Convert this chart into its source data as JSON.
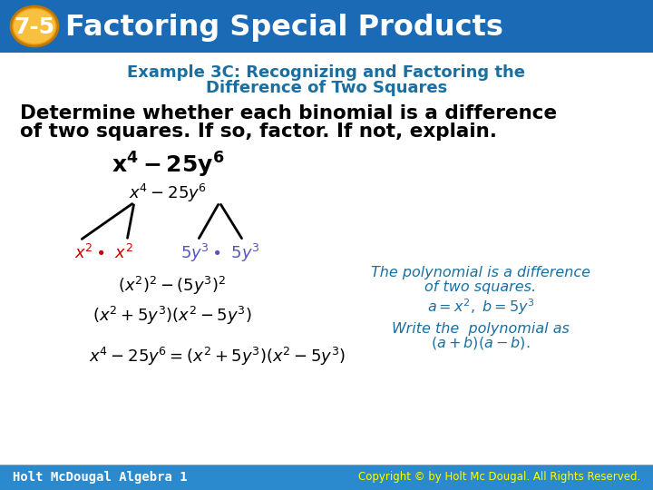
{
  "title_badge": "7-5",
  "title_text": "Factoring Special Products",
  "header_bg": "#1a6ab5",
  "header_tile_color": "#2a7dc5",
  "badge_bg_outer": "#f0a010",
  "badge_bg_inner": "#f8c040",
  "badge_text_color": "#ffffff",
  "title_color": "#ffffff",
  "subtitle_color": "#1a6fa0",
  "subtitle_line1": "Example 3C: Recognizing and Factoring the",
  "subtitle_line2": "Difference of Two Squares",
  "body_line1": "Determine whether each binomial is a difference",
  "body_line2": "of two squares. If so, factor. If not, explain.",
  "body_color": "#000000",
  "expression_main": "$\\mathbf{x^4 - 25y^6}$",
  "expression_color": "#000000",
  "tree_top": "$x^4 - 25y^6$",
  "tree_left_color": "#cc0000",
  "tree_right_color": "#5555bb",
  "tree_text_color": "#000000",
  "eq1": "$(x^2)^2 - (5y^3)^2$",
  "eq2": "$(x^2 + 5y^3)(x^2 - 5y^3)$",
  "eq3": "$x^4 - 25y^6 = (x^2 + 5y^3)(x^2 - 5y^3)$",
  "note1_line1": "The polynomial is a difference",
  "note1_line2": "of two squares.",
  "note2": "$a = x^2,\\ b = 5y^3$",
  "note3_line1": "Write the  polynomial as",
  "note3_line2": "$(a + b)(a - b).$",
  "note_color": "#1a6fa0",
  "footer_left": "Holt McDougal Algebra 1",
  "footer_right": "Copyright © by Holt Mc Dougal. All Rights Reserved.",
  "footer_color": "#ffffff",
  "footer_bg": "#2a8acd",
  "slide_bg": "#ffffff"
}
